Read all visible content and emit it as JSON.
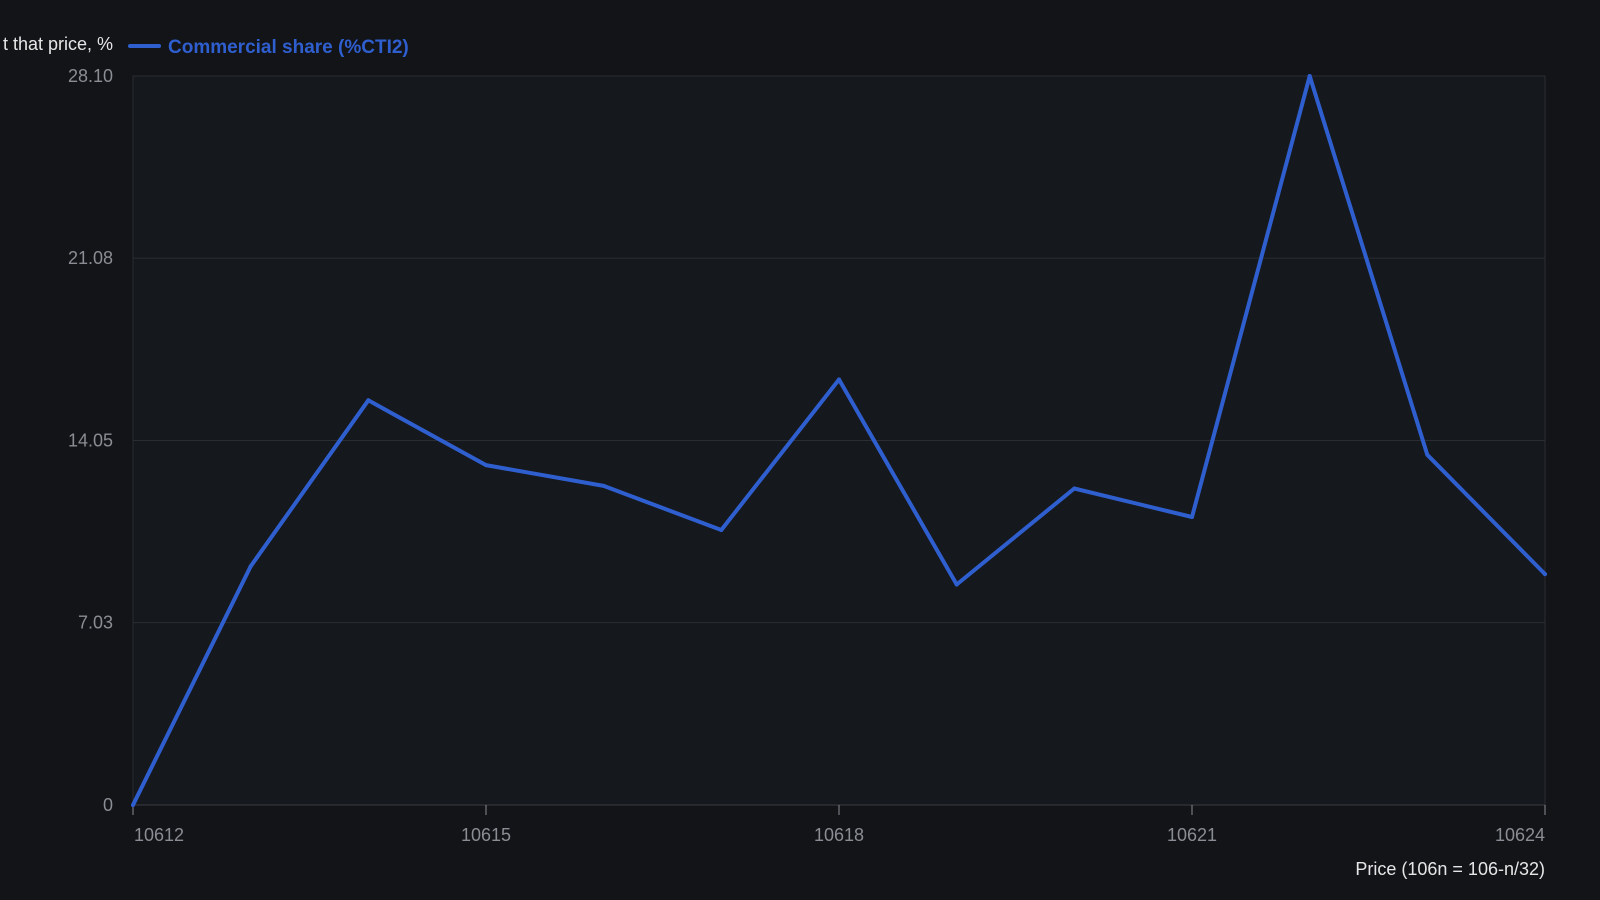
{
  "chart_data": {
    "type": "line",
    "ylabel": "t that price, %",
    "xlabel": "Price (106n = 106-n/32)",
    "legend_position": "top-left",
    "grid": true,
    "x_ticks": [
      10612,
      10615,
      10618,
      10621,
      10624
    ],
    "y_ticks": [
      0,
      7.03,
      14.05,
      21.08,
      28.1
    ],
    "y_tick_labels": [
      "0",
      "7.03",
      "14.05",
      "21.08",
      "28.10"
    ],
    "xlim": [
      10612,
      10624
    ],
    "ylim": [
      0,
      28.1
    ],
    "series": [
      {
        "name": "Commercial share (%CTI2)",
        "color": "#2f5fcf",
        "x": [
          10612,
          10613,
          10614,
          10615,
          10616,
          10617,
          10618,
          10619,
          10620,
          10621,
          10622,
          10623,
          10624
        ],
        "y": [
          0,
          9.2,
          15.6,
          13.1,
          12.3,
          10.6,
          16.4,
          8.5,
          12.2,
          11.1,
          28.1,
          13.5,
          8.9
        ]
      }
    ]
  }
}
